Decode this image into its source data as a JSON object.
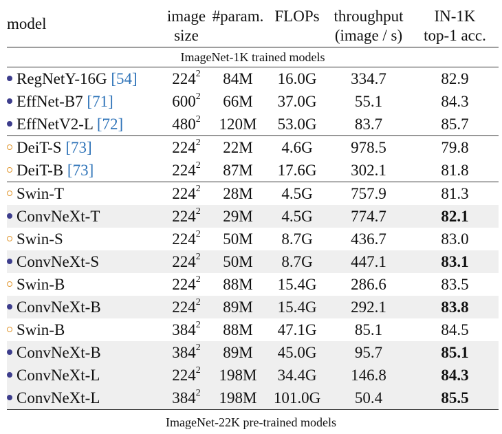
{
  "headers": {
    "model": "model",
    "image_size_1": "image",
    "image_size_2": "size",
    "param": "#param.",
    "flops": "FLOPs",
    "throughput_1": "throughput",
    "throughput_2": "(image / s)",
    "acc_1": "IN-1K",
    "acc_2": "top-1 acc."
  },
  "section_in1k": "ImageNet-1K trained models",
  "section_in22k": "ImageNet-22K pre-trained models",
  "rows": [
    {
      "marker": "filled",
      "name": "RegNetY-16G",
      "ref": "[54]",
      "size": "224",
      "size_exp": "2",
      "param": "84M",
      "flops": "16.0G",
      "throughput": "334.7",
      "acc": "82.9",
      "bold": false,
      "shaded": false,
      "group_start": true
    },
    {
      "marker": "filled",
      "name": "EffNet-B7",
      "ref": "[71]",
      "size": "600",
      "size_exp": "2",
      "param": "66M",
      "flops": "37.0G",
      "throughput": "55.1",
      "acc": "84.3",
      "bold": false,
      "shaded": false,
      "group_start": false
    },
    {
      "marker": "filled",
      "name": "EffNetV2-L",
      "ref": "[72]",
      "size": "480",
      "size_exp": "2",
      "param": "120M",
      "flops": "53.0G",
      "throughput": "83.7",
      "acc": "85.7",
      "bold": false,
      "shaded": false,
      "group_start": false
    },
    {
      "marker": "hollow",
      "name": "DeiT-S",
      "ref": "[73]",
      "size": "224",
      "size_exp": "2",
      "param": "22M",
      "flops": "4.6G",
      "throughput": "978.5",
      "acc": "79.8",
      "bold": false,
      "shaded": false,
      "group_start": true
    },
    {
      "marker": "hollow",
      "name": "DeiT-B",
      "ref": "[73]",
      "size": "224",
      "size_exp": "2",
      "param": "87M",
      "flops": "17.6G",
      "throughput": "302.1",
      "acc": "81.8",
      "bold": false,
      "shaded": false,
      "group_start": false
    },
    {
      "marker": "hollow",
      "name": "Swin-T",
      "ref": "",
      "size": "224",
      "size_exp": "2",
      "param": "28M",
      "flops": "4.5G",
      "throughput": "757.9",
      "acc": "81.3",
      "bold": false,
      "shaded": false,
      "group_start": true
    },
    {
      "marker": "filled",
      "name": "ConvNeXt-T",
      "ref": "",
      "size": "224",
      "size_exp": "2",
      "param": "29M",
      "flops": "4.5G",
      "throughput": "774.7",
      "acc": "82.1",
      "bold": true,
      "shaded": true,
      "group_start": false
    },
    {
      "marker": "hollow",
      "name": "Swin-S",
      "ref": "",
      "size": "224",
      "size_exp": "2",
      "param": "50M",
      "flops": "8.7G",
      "throughput": "436.7",
      "acc": "83.0",
      "bold": false,
      "shaded": false,
      "group_start": false
    },
    {
      "marker": "filled",
      "name": "ConvNeXt-S",
      "ref": "",
      "size": "224",
      "size_exp": "2",
      "param": "50M",
      "flops": "8.7G",
      "throughput": "447.1",
      "acc": "83.1",
      "bold": true,
      "shaded": true,
      "group_start": false
    },
    {
      "marker": "hollow",
      "name": "Swin-B",
      "ref": "",
      "size": "224",
      "size_exp": "2",
      "param": "88M",
      "flops": "15.4G",
      "throughput": "286.6",
      "acc": "83.5",
      "bold": false,
      "shaded": false,
      "group_start": false
    },
    {
      "marker": "filled",
      "name": "ConvNeXt-B",
      "ref": "",
      "size": "224",
      "size_exp": "2",
      "param": "89M",
      "flops": "15.4G",
      "throughput": "292.1",
      "acc": "83.8",
      "bold": true,
      "shaded": true,
      "group_start": false
    },
    {
      "marker": "hollow",
      "name": "Swin-B",
      "ref": "",
      "size": "384",
      "size_exp": "2",
      "param": "88M",
      "flops": "47.1G",
      "throughput": "85.1",
      "acc": "84.5",
      "bold": false,
      "shaded": false,
      "group_start": false
    },
    {
      "marker": "filled",
      "name": "ConvNeXt-B",
      "ref": "",
      "size": "384",
      "size_exp": "2",
      "param": "89M",
      "flops": "45.0G",
      "throughput": "95.7",
      "acc": "85.1",
      "bold": true,
      "shaded": true,
      "group_start": false
    },
    {
      "marker": "filled",
      "name": "ConvNeXt-L",
      "ref": "",
      "size": "224",
      "size_exp": "2",
      "param": "198M",
      "flops": "34.4G",
      "throughput": "146.8",
      "acc": "84.3",
      "bold": true,
      "shaded": true,
      "group_start": false
    },
    {
      "marker": "filled",
      "name": "ConvNeXt-L",
      "ref": "",
      "size": "384",
      "size_exp": "2",
      "param": "198M",
      "flops": "101.0G",
      "throughput": "50.4",
      "acc": "85.5",
      "bold": true,
      "shaded": true,
      "group_start": false
    }
  ],
  "colors": {
    "filled_marker": "#3d3d8c",
    "hollow_marker": "#e0962e",
    "citation": "#2e73b8",
    "shaded_row": "#efefef"
  }
}
